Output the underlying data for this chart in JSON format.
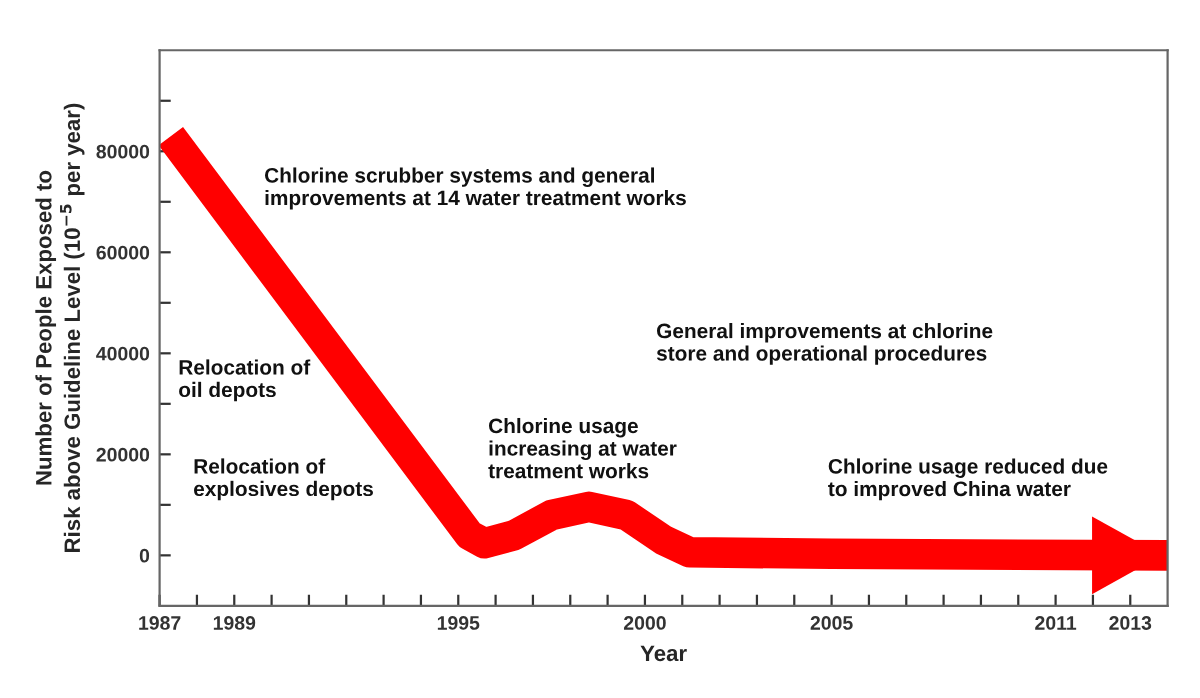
{
  "chart_data": {
    "type": "line",
    "xlabel": "Year",
    "ylabel": "Number of People Exposed to\nRisk above Guideline Level (10$^{−5}$ per year)",
    "series": [
      {
        "color": "#ff0000",
        "x": [
          1987.3,
          1995.3,
          1995.7,
          1996.5,
          1997.5,
          1998.5,
          1999.5,
          2000.5,
          2001.2,
          2005,
          2014
        ],
        "values": [
          83000,
          4000,
          2400,
          4000,
          8000,
          9600,
          8000,
          3000,
          600,
          300,
          0
        ]
      }
    ],
    "xlim": [
      1987,
      2014
    ],
    "ylim": [
      -10000,
      100000
    ],
    "xticks": [
      1987,
      {
        "value": 1988,
        "label": null
      },
      1989,
      {
        "value": 1990,
        "label": null
      },
      {
        "value": 1991,
        "label": null
      },
      {
        "value": 1992,
        "label": null
      },
      {
        "value": 1993,
        "label": null
      },
      {
        "value": 1994,
        "label": null
      },
      1995,
      {
        "value": 1996,
        "label": null
      },
      {
        "value": 1997,
        "label": null
      },
      {
        "value": 1998,
        "label": null
      },
      {
        "value": 1999,
        "label": null
      },
      2000,
      {
        "value": 2001,
        "label": null
      },
      {
        "value": 2002,
        "label": null
      },
      {
        "value": 2003,
        "label": null
      },
      {
        "value": 2004,
        "label": null
      },
      2005,
      {
        "value": 2006,
        "label": null
      },
      {
        "value": 2007,
        "label": null
      },
      {
        "value": 2008,
        "label": null
      },
      {
        "value": 2009,
        "label": null
      },
      {
        "value": 2010,
        "label": null
      },
      2011,
      {
        "value": 2012,
        "label": null
      },
      2013
    ],
    "yticks": [
      0,
      {
        "value": 10000,
        "label": null
      },
      20000,
      {
        "value": 30000,
        "label": null
      },
      40000,
      {
        "value": 50000,
        "label": null
      },
      60000,
      {
        "value": 70000,
        "label": null
      },
      80000,
      {
        "value": 90000,
        "label": null
      }
    ],
    "grid": false,
    "legend": false,
    "marker": "none",
    "line_style": "solid",
    "annotations": [
      "Chlorine scrubber systems and general\nimprovements at 14 water treatment works",
      "Relocation of\noil depots",
      "Relocation of\nexplosives depots",
      "Chlorine usage\nincreasing at water\ntreatment works",
      "General improvements at chlorine\nstore and operational procedures",
      "Chlorine usage reduced due\nto improved China water"
    ]
  }
}
